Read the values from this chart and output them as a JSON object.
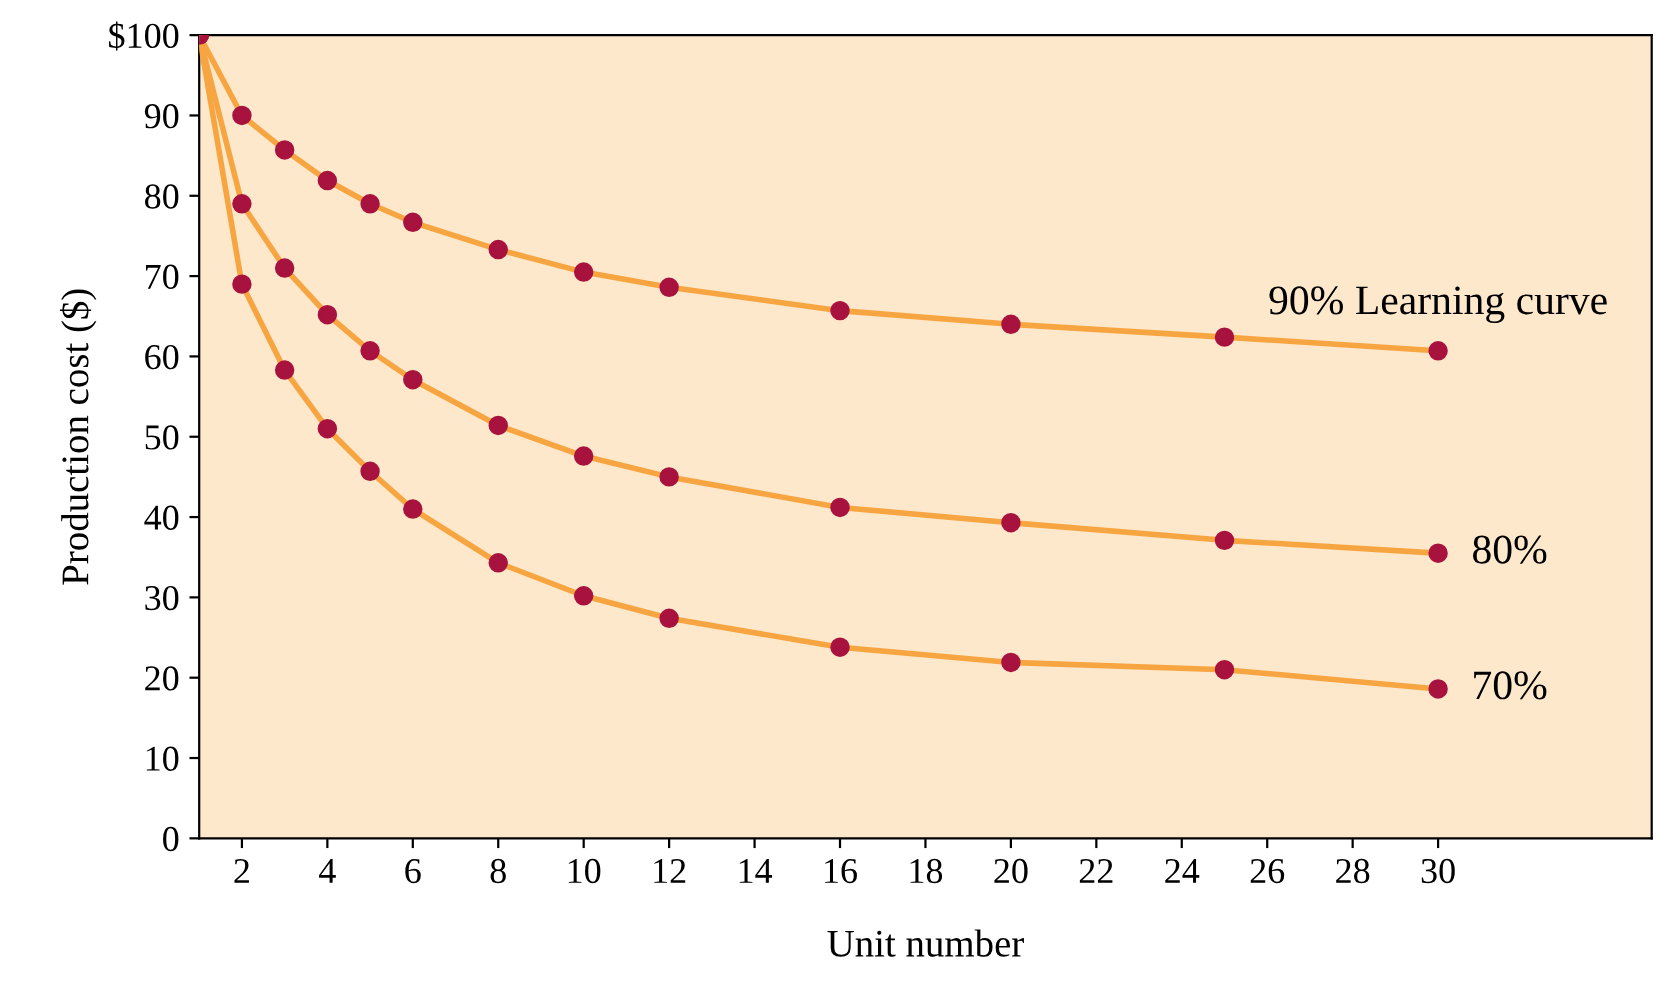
{
  "chart_data": {
    "type": "line",
    "xlabel": "Unit number",
    "ylabel": "Production cost ($)",
    "x": [
      1,
      2,
      3,
      4,
      5,
      6,
      8,
      10,
      12,
      16,
      20,
      25,
      30
    ],
    "series": [
      {
        "name": "90% Learning curve",
        "color": "#f7a541",
        "values": [
          100,
          90,
          85.7,
          81.9,
          79,
          76.7,
          73.3,
          70.5,
          68.6,
          65.7,
          64,
          62.4,
          60.7
        ]
      },
      {
        "name": "80%",
        "color": "#f7a541",
        "values": [
          100,
          79,
          71,
          65.2,
          60.7,
          57.1,
          51.4,
          47.6,
          45,
          41.2,
          39.3,
          37.1,
          35.5
        ]
      },
      {
        "name": "70%",
        "color": "#f7a541",
        "values": [
          100,
          69,
          58.3,
          51,
          45.7,
          41,
          34.3,
          30.2,
          27.4,
          23.8,
          21.9,
          21,
          18.6
        ]
      }
    ],
    "xlim": [
      1,
      35
    ],
    "xticks": [
      2,
      4,
      6,
      8,
      10,
      12,
      14,
      16,
      18,
      20,
      22,
      24,
      26,
      28,
      30
    ],
    "ylim": [
      0,
      100
    ],
    "yticks": [
      0,
      10,
      20,
      30,
      40,
      50,
      60,
      70,
      80,
      90,
      {
        "value": 100,
        "label": "$100"
      }
    ],
    "marker": "circle",
    "grid": false,
    "legend": false
  }
}
